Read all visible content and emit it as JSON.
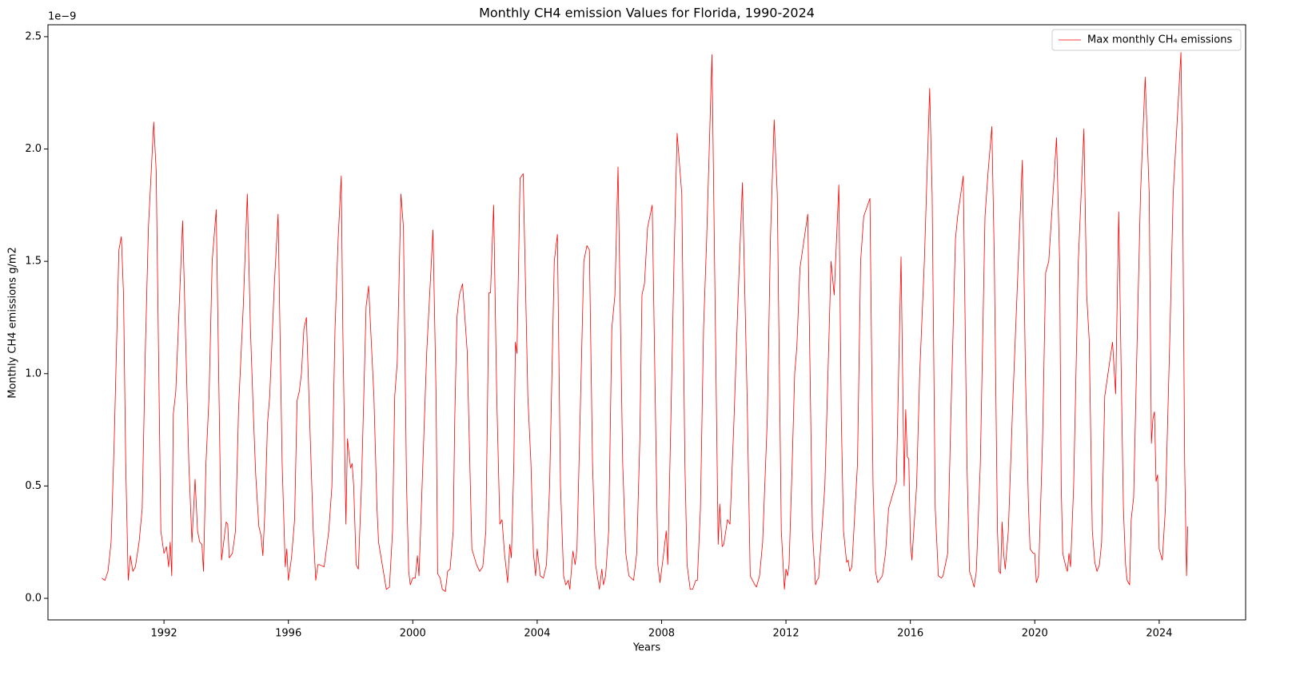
{
  "chart_data": {
    "type": "line",
    "title": "Monthly CH4 emission Values for Florida, 1990-2024",
    "x_label": "Years",
    "y_label": "Monthly CH4 emissions g/m2",
    "y_offset_label": "1e−9",
    "legend": "upper right",
    "xlim": [
      1988.27,
      2026.78
    ],
    "xticks": [
      1992,
      1996,
      2000,
      2004,
      2008,
      2012,
      2016,
      2020,
      2024
    ],
    "ylim": [
      -0.096,
      2.553
    ],
    "yticks": [
      {
        "value": 0,
        "label": "0.0"
      },
      0.5,
      {
        "value": 1,
        "label": "1.0"
      },
      1.5,
      {
        "value": 2,
        "label": "2.0"
      },
      2.5
    ],
    "x": [
      1990.0,
      1990.1,
      1990.2,
      1990.3,
      1990.4,
      1990.55,
      1990.63,
      1990.7,
      1990.77,
      1990.85,
      1990.92,
      1991.0,
      1991.08,
      1991.2,
      1991.3,
      1991.4,
      1991.5,
      1991.67,
      1991.75,
      1991.9,
      1992.0,
      1992.08,
      1992.15,
      1992.2,
      1992.25,
      1992.3,
      1992.38,
      1992.6,
      1992.8,
      1992.9,
      1993.0,
      1993.08,
      1993.15,
      1993.22,
      1993.27,
      1993.35,
      1993.45,
      1993.55,
      1993.68,
      1993.85,
      1994.0,
      1994.05,
      1994.1,
      1994.2,
      1994.3,
      1994.4,
      1994.55,
      1994.68,
      1994.78,
      1994.88,
      1994.95,
      1995.05,
      1995.12,
      1995.18,
      1995.25,
      1995.33,
      1995.4,
      1995.55,
      1995.67,
      1995.8,
      1995.9,
      1995.95,
      1996.0,
      1996.1,
      1996.2,
      1996.28,
      1996.35,
      1996.42,
      1996.5,
      1996.58,
      1996.8,
      1996.88,
      1996.95,
      1997.0,
      1997.15,
      1997.3,
      1997.4,
      1997.5,
      1997.6,
      1997.7,
      1997.75,
      1997.85,
      1997.9,
      1998.0,
      1998.05,
      1998.1,
      1998.18,
      1998.25,
      1998.35,
      1998.5,
      1998.58,
      1998.75,
      1998.85,
      1998.9,
      1999.15,
      1999.25,
      1999.35,
      1999.42,
      1999.5,
      1999.62,
      1999.7,
      1999.8,
      1999.87,
      1999.92,
      2000.0,
      2000.08,
      2000.15,
      2000.2,
      2000.3,
      2000.45,
      2000.65,
      2000.75,
      2000.8,
      2000.88,
      2000.95,
      2001.05,
      2001.12,
      2001.2,
      2001.3,
      2001.35,
      2001.42,
      2001.5,
      2001.6,
      2001.75,
      2001.9,
      2002.05,
      2002.15,
      2002.25,
      2002.35,
      2002.45,
      2002.5,
      2002.6,
      2002.7,
      2002.8,
      2002.87,
      2002.95,
      2003.05,
      2003.12,
      2003.17,
      2003.25,
      2003.3,
      2003.35,
      2003.45,
      2003.55,
      2003.7,
      2003.8,
      2003.88,
      2003.95,
      2004.0,
      2004.1,
      2004.2,
      2004.3,
      2004.4,
      2004.55,
      2004.65,
      2004.75,
      2004.85,
      2004.92,
      2005.0,
      2005.05,
      2005.15,
      2005.22,
      2005.28,
      2005.38,
      2005.5,
      2005.6,
      2005.68,
      2005.78,
      2005.88,
      2006.0,
      2006.08,
      2006.13,
      2006.2,
      2006.3,
      2006.4,
      2006.5,
      2006.6,
      2006.75,
      2006.85,
      2006.95,
      2007.1,
      2007.2,
      2007.3,
      2007.37,
      2007.45,
      2007.55,
      2007.7,
      2007.88,
      2007.95,
      2008.05,
      2008.15,
      2008.2,
      2008.3,
      2008.4,
      2008.5,
      2008.65,
      2008.75,
      2008.82,
      2008.92,
      2009.0,
      2009.1,
      2009.15,
      2009.25,
      2009.35,
      2009.45,
      2009.62,
      2009.75,
      2009.82,
      2009.87,
      2009.95,
      2010.0,
      2010.12,
      2010.2,
      2010.33,
      2010.45,
      2010.6,
      2010.75,
      2010.85,
      2011.0,
      2011.05,
      2011.15,
      2011.25,
      2011.4,
      2011.5,
      2011.62,
      2011.72,
      2011.85,
      2011.95,
      2012.0,
      2012.05,
      2012.1,
      2012.2,
      2012.28,
      2012.35,
      2012.45,
      2012.7,
      2012.85,
      2012.95,
      2013.0,
      2013.05,
      2013.25,
      2013.45,
      2013.55,
      2013.7,
      2013.78,
      2013.85,
      2013.95,
      2014.0,
      2014.05,
      2014.12,
      2014.3,
      2014.4,
      2014.5,
      2014.7,
      2014.8,
      2014.88,
      2014.95,
      2015.05,
      2015.1,
      2015.2,
      2015.3,
      2015.55,
      2015.7,
      2015.8,
      2015.85,
      2015.9,
      2015.95,
      2016.0,
      2016.05,
      2016.2,
      2016.3,
      2016.45,
      2016.62,
      2016.7,
      2016.8,
      2016.9,
      2017.0,
      2017.05,
      2017.2,
      2017.3,
      2017.45,
      2017.52,
      2017.7,
      2017.82,
      2017.9,
      2017.95,
      2018.05,
      2018.12,
      2018.25,
      2018.4,
      2018.5,
      2018.62,
      2018.7,
      2018.8,
      2018.85,
      2018.9,
      2018.95,
      2019.0,
      2019.05,
      2019.15,
      2019.3,
      2019.6,
      2019.7,
      2019.8,
      2019.85,
      2019.95,
      2020.0,
      2020.05,
      2020.12,
      2020.25,
      2020.35,
      2020.45,
      2020.7,
      2020.8,
      2020.85,
      2020.9,
      2021.0,
      2021.05,
      2021.1,
      2021.15,
      2021.25,
      2021.4,
      2021.58,
      2021.67,
      2021.75,
      2021.85,
      2021.93,
      2022.0,
      2022.08,
      2022.15,
      2022.25,
      2022.5,
      2022.6,
      2022.7,
      2022.78,
      2022.85,
      2022.92,
      2022.97,
      2023.05,
      2023.1,
      2023.18,
      2023.3,
      2023.4,
      2023.55,
      2023.68,
      2023.75,
      2023.8,
      2023.85,
      2023.9,
      2023.95,
      2024.0,
      2024.1,
      2024.2,
      2024.35,
      2024.45,
      2024.7,
      2024.75,
      2024.82,
      2024.88,
      2024.92
    ],
    "series": [
      {
        "name": "Max monthly CH₄ emissions",
        "color": "#ff0000",
        "values": [
          0.09,
          0.08,
          0.12,
          0.25,
          0.7,
          1.55,
          1.61,
          1.35,
          0.6,
          0.08,
          0.19,
          0.12,
          0.14,
          0.25,
          0.4,
          1.1,
          1.65,
          2.12,
          1.9,
          0.3,
          0.2,
          0.23,
          0.14,
          0.25,
          0.1,
          0.82,
          0.92,
          1.68,
          0.6,
          0.25,
          0.53,
          0.3,
          0.25,
          0.24,
          0.12,
          0.6,
          0.9,
          1.5,
          1.73,
          0.17,
          0.34,
          0.33,
          0.18,
          0.2,
          0.3,
          0.85,
          1.3,
          1.8,
          1.2,
          0.8,
          0.55,
          0.32,
          0.28,
          0.19,
          0.4,
          0.78,
          0.9,
          1.4,
          1.71,
          0.6,
          0.14,
          0.22,
          0.08,
          0.18,
          0.35,
          0.88,
          0.92,
          1.0,
          1.2,
          1.25,
          0.3,
          0.08,
          0.15,
          0.15,
          0.14,
          0.3,
          0.5,
          1.2,
          1.6,
          1.88,
          1.2,
          0.33,
          0.71,
          0.58,
          0.6,
          0.5,
          0.15,
          0.13,
          0.5,
          1.3,
          1.39,
          0.9,
          0.4,
          0.25,
          0.04,
          0.05,
          0.3,
          0.9,
          1.05,
          1.8,
          1.65,
          0.5,
          0.12,
          0.06,
          0.09,
          0.09,
          0.19,
          0.1,
          0.5,
          1.1,
          1.64,
          0.9,
          0.11,
          0.09,
          0.04,
          0.03,
          0.12,
          0.13,
          0.3,
          0.8,
          1.25,
          1.35,
          1.4,
          1.1,
          0.22,
          0.15,
          0.12,
          0.14,
          0.3,
          1.36,
          1.36,
          1.75,
          0.9,
          0.33,
          0.35,
          0.2,
          0.07,
          0.24,
          0.18,
          0.6,
          1.14,
          1.09,
          1.87,
          1.89,
          0.9,
          0.6,
          0.2,
          0.1,
          0.22,
          0.1,
          0.09,
          0.15,
          0.5,
          1.5,
          1.62,
          0.5,
          0.1,
          0.06,
          0.08,
          0.04,
          0.21,
          0.15,
          0.22,
          0.8,
          1.5,
          1.57,
          1.55,
          0.6,
          0.15,
          0.04,
          0.13,
          0.06,
          0.1,
          0.3,
          1.2,
          1.35,
          1.92,
          0.6,
          0.2,
          0.1,
          0.08,
          0.2,
          0.7,
          1.35,
          1.4,
          1.65,
          1.75,
          0.15,
          0.07,
          0.18,
          0.3,
          0.15,
          0.8,
          1.5,
          2.07,
          1.8,
          0.6,
          0.15,
          0.04,
          0.04,
          0.08,
          0.08,
          0.4,
          1.2,
          1.6,
          2.42,
          1.0,
          0.24,
          0.42,
          0.23,
          0.24,
          0.35,
          0.33,
          0.8,
          1.3,
          1.85,
          0.9,
          0.1,
          0.06,
          0.05,
          0.1,
          0.25,
          0.8,
          1.6,
          2.13,
          1.8,
          0.3,
          0.04,
          0.13,
          0.1,
          0.15,
          0.6,
          1.0,
          1.12,
          1.47,
          1.71,
          0.3,
          0.06,
          0.08,
          0.09,
          0.5,
          1.5,
          1.35,
          1.84,
          0.8,
          0.3,
          0.16,
          0.17,
          0.12,
          0.14,
          0.6,
          1.5,
          1.7,
          1.78,
          0.5,
          0.12,
          0.07,
          0.09,
          0.1,
          0.2,
          0.4,
          0.52,
          1.52,
          0.5,
          0.84,
          0.63,
          0.62,
          0.25,
          0.17,
          0.5,
          1.0,
          1.5,
          2.27,
          1.8,
          0.4,
          0.1,
          0.09,
          0.1,
          0.2,
          0.8,
          1.6,
          1.7,
          1.88,
          0.6,
          0.12,
          0.1,
          0.05,
          0.12,
          0.6,
          1.7,
          1.9,
          2.1,
          1.5,
          0.3,
          0.12,
          0.11,
          0.34,
          0.2,
          0.13,
          0.3,
          0.9,
          1.95,
          1.0,
          0.4,
          0.22,
          0.2,
          0.2,
          0.07,
          0.1,
          0.7,
          1.45,
          1.5,
          2.05,
          1.5,
          0.5,
          0.2,
          0.14,
          0.12,
          0.2,
          0.14,
          0.5,
          1.5,
          2.09,
          1.35,
          1.15,
          0.3,
          0.16,
          0.12,
          0.15,
          0.25,
          0.9,
          1.14,
          0.91,
          1.72,
          1.0,
          0.4,
          0.15,
          0.08,
          0.06,
          0.35,
          0.45,
          1.2,
          1.8,
          2.32,
          1.8,
          0.69,
          0.8,
          0.83,
          0.52,
          0.55,
          0.22,
          0.17,
          0.4,
          1.2,
          1.8,
          2.43,
          1.9,
          0.6,
          0.1,
          0.32
        ]
      }
    ]
  }
}
